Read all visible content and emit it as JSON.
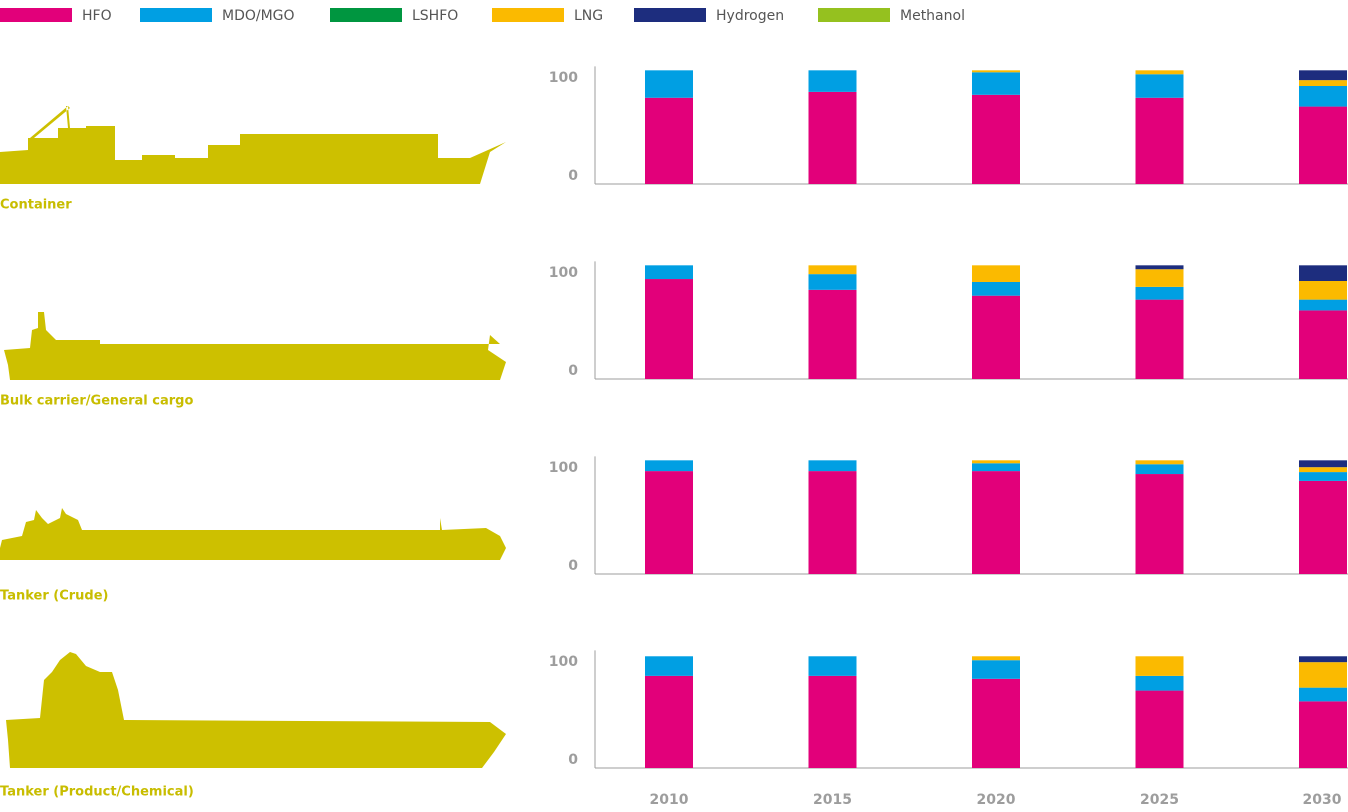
{
  "chart_data": [
    {
      "type": "stacked-bar",
      "title": "Container",
      "categories": [
        "2010",
        "2015",
        "2020",
        "2025",
        "2030"
      ],
      "ylim": [
        0,
        120
      ],
      "yticks": [
        0,
        100
      ],
      "series": [
        {
          "name": "HFO",
          "color": "#e2007a",
          "values": [
            88,
            94,
            91,
            88,
            79
          ]
        },
        {
          "name": "MDO/MGO",
          "color": "#009fe3",
          "values": [
            28,
            22,
            23,
            24,
            21
          ]
        },
        {
          "name": "LSHFO",
          "color": "#009640",
          "values": [
            0,
            0,
            0,
            0,
            0
          ]
        },
        {
          "name": "LNG",
          "color": "#fbba00",
          "values": [
            0,
            0,
            2,
            4,
            6
          ]
        },
        {
          "name": "Hydrogen",
          "color": "#1d2d7e",
          "values": [
            0,
            0,
            0,
            0,
            10
          ]
        },
        {
          "name": "Methanol",
          "color": "#95c11f",
          "values": [
            0,
            0,
            0,
            0,
            0
          ]
        }
      ]
    },
    {
      "type": "stacked-bar",
      "title": "Bulk carrier/General cargo",
      "categories": [
        "2010",
        "2015",
        "2020",
        "2025",
        "2030"
      ],
      "ylim": [
        0,
        120
      ],
      "yticks": [
        0,
        100
      ],
      "series": [
        {
          "name": "HFO",
          "color": "#e2007a",
          "values": [
            102,
            91,
            85,
            81,
            70
          ]
        },
        {
          "name": "MDO/MGO",
          "color": "#009fe3",
          "values": [
            14,
            16,
            14,
            13,
            11
          ]
        },
        {
          "name": "LSHFO",
          "color": "#009640",
          "values": [
            0,
            0,
            0,
            0,
            0
          ]
        },
        {
          "name": "LNG",
          "color": "#fbba00",
          "values": [
            0,
            9,
            17,
            18,
            19
          ]
        },
        {
          "name": "Hydrogen",
          "color": "#1d2d7e",
          "values": [
            0,
            0,
            0,
            4,
            16
          ]
        },
        {
          "name": "Methanol",
          "color": "#95c11f",
          "values": [
            0,
            0,
            0,
            0,
            0
          ]
        }
      ]
    },
    {
      "type": "stacked-bar",
      "title": "Tanker (Crude)",
      "categories": [
        "2010",
        "2015",
        "2020",
        "2025",
        "2030"
      ],
      "ylim": [
        0,
        120
      ],
      "yticks": [
        0,
        100
      ],
      "series": [
        {
          "name": "HFO",
          "color": "#e2007a",
          "values": [
            105,
            105,
            105,
            102,
            95
          ]
        },
        {
          "name": "MDO/MGO",
          "color": "#009fe3",
          "values": [
            11,
            11,
            8,
            10,
            9
          ]
        },
        {
          "name": "LSHFO",
          "color": "#009640",
          "values": [
            0,
            0,
            0,
            0,
            0
          ]
        },
        {
          "name": "LNG",
          "color": "#fbba00",
          "values": [
            0,
            0,
            3,
            4,
            5
          ]
        },
        {
          "name": "Hydrogen",
          "color": "#1d2d7e",
          "values": [
            0,
            0,
            0,
            0,
            7
          ]
        },
        {
          "name": "Methanol",
          "color": "#95c11f",
          "values": [
            0,
            0,
            0,
            0,
            0
          ]
        }
      ]
    },
    {
      "type": "stacked-bar",
      "title": "Tanker (Product/Chemical)",
      "categories": [
        "2010",
        "2015",
        "2020",
        "2025",
        "2030"
      ],
      "ylim": [
        0,
        120
      ],
      "yticks": [
        0,
        100
      ],
      "series": [
        {
          "name": "HFO",
          "color": "#e2007a",
          "values": [
            94,
            94,
            91,
            79,
            68
          ]
        },
        {
          "name": "MDO/MGO",
          "color": "#009fe3",
          "values": [
            20,
            20,
            19,
            15,
            14
          ]
        },
        {
          "name": "LSHFO",
          "color": "#009640",
          "values": [
            0,
            0,
            0,
            0,
            0
          ]
        },
        {
          "name": "LNG",
          "color": "#fbba00",
          "values": [
            0,
            0,
            4,
            20,
            26
          ]
        },
        {
          "name": "Hydrogen",
          "color": "#1d2d7e",
          "values": [
            0,
            0,
            0,
            0,
            6
          ]
        },
        {
          "name": "Methanol",
          "color": "#95c11f",
          "values": [
            0,
            0,
            0,
            0,
            0
          ]
        }
      ]
    }
  ]
}
